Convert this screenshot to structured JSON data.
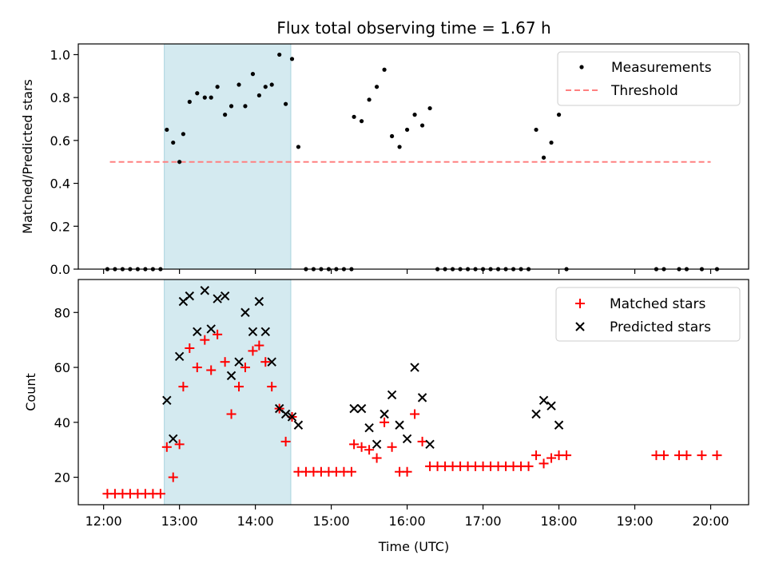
{
  "chart_data": [
    {
      "type": "scatter",
      "title": "Flux total observing time = 1.67 h",
      "ylabel": "Matched/Predicted stars",
      "xlabel": "",
      "xlim": [
        "11:40",
        "20:30"
      ],
      "ylim": [
        0,
        1.05
      ],
      "yticks": [
        0.0,
        0.2,
        0.4,
        0.6,
        0.8,
        1.0
      ],
      "ytick_labels": [
        "0.0",
        "0.2",
        "0.4",
        "0.6",
        "0.8",
        "1.0"
      ],
      "highlight_span": [
        "12:48",
        "14:28"
      ],
      "highlight_color": "#d4eaf0",
      "grid": false,
      "legend_position": "top-right",
      "threshold": {
        "name": "Threshold",
        "value": 0.5,
        "x_range": [
          "12:05",
          "20:00"
        ],
        "color": "#ff8080"
      },
      "series": [
        {
          "name": "Measurements",
          "color": "#000000",
          "marker": "dot",
          "points": [
            [
              "12:03",
              0
            ],
            [
              "12:09",
              0
            ],
            [
              "12:15",
              0
            ],
            [
              "12:21",
              0
            ],
            [
              "12:27",
              0
            ],
            [
              "12:33",
              0
            ],
            [
              "12:39",
              0
            ],
            [
              "12:45",
              0
            ],
            [
              "12:50",
              0.65
            ],
            [
              "12:55",
              0.59
            ],
            [
              "13:00",
              0.5
            ],
            [
              "13:03",
              0.63
            ],
            [
              "13:08",
              0.78
            ],
            [
              "13:14",
              0.82
            ],
            [
              "13:20",
              0.8
            ],
            [
              "13:25",
              0.8
            ],
            [
              "13:30",
              0.85
            ],
            [
              "13:36",
              0.72
            ],
            [
              "13:41",
              0.76
            ],
            [
              "13:47",
              0.86
            ],
            [
              "13:52",
              0.76
            ],
            [
              "13:58",
              0.91
            ],
            [
              "14:03",
              0.81
            ],
            [
              "14:08",
              0.85
            ],
            [
              "14:13",
              0.86
            ],
            [
              "14:19",
              1.0
            ],
            [
              "14:24",
              0.77
            ],
            [
              "14:29",
              0.98
            ],
            [
              "14:34",
              0.57
            ],
            [
              "14:40",
              0
            ],
            [
              "14:46",
              0
            ],
            [
              "14:52",
              0
            ],
            [
              "14:58",
              0
            ],
            [
              "15:04",
              0
            ],
            [
              "15:10",
              0
            ],
            [
              "15:16",
              0
            ],
            [
              "15:18",
              0.71
            ],
            [
              "15:24",
              0.69
            ],
            [
              "15:30",
              0.79
            ],
            [
              "15:36",
              0.85
            ],
            [
              "15:42",
              0.93
            ],
            [
              "15:48",
              0.62
            ],
            [
              "15:54",
              0.57
            ],
            [
              "16:00",
              0.65
            ],
            [
              "16:06",
              0.72
            ],
            [
              "16:12",
              0.67
            ],
            [
              "16:18",
              0.75
            ],
            [
              "16:24",
              0
            ],
            [
              "16:30",
              0
            ],
            [
              "16:36",
              0
            ],
            [
              "16:42",
              0
            ],
            [
              "16:48",
              0
            ],
            [
              "16:54",
              0
            ],
            [
              "17:00",
              0
            ],
            [
              "17:06",
              0
            ],
            [
              "17:12",
              0
            ],
            [
              "17:18",
              0
            ],
            [
              "17:24",
              0
            ],
            [
              "17:30",
              0
            ],
            [
              "17:36",
              0
            ],
            [
              "17:42",
              0.65
            ],
            [
              "17:48",
              0.52
            ],
            [
              "17:54",
              0.59
            ],
            [
              "18:00",
              0.72
            ],
            [
              "18:06",
              0
            ],
            [
              "19:17",
              0
            ],
            [
              "19:23",
              0
            ],
            [
              "19:35",
              0
            ],
            [
              "19:41",
              0
            ],
            [
              "19:53",
              0
            ],
            [
              "20:05",
              0
            ]
          ]
        }
      ]
    },
    {
      "type": "scatter",
      "title": "",
      "ylabel": "Count",
      "xlabel": "Time (UTC)",
      "xlim": [
        "11:40",
        "20:30"
      ],
      "ylim": [
        10,
        92
      ],
      "yticks": [
        20,
        40,
        60,
        80
      ],
      "ytick_labels": [
        "20",
        "40",
        "60",
        "80"
      ],
      "xticks": [
        "12:00",
        "13:00",
        "14:00",
        "15:00",
        "16:00",
        "17:00",
        "18:00",
        "19:00",
        "20:00"
      ],
      "xtick_labels": [
        "12:00",
        "13:00",
        "14:00",
        "15:00",
        "16:00",
        "17:00",
        "18:00",
        "19:00",
        "20:00"
      ],
      "highlight_span": [
        "12:48",
        "14:28"
      ],
      "highlight_color": "#d4eaf0",
      "grid": false,
      "legend_position": "top-right",
      "series": [
        {
          "name": "Matched stars",
          "color": "#ff0000",
          "marker": "plus",
          "points": [
            [
              "12:03",
              14
            ],
            [
              "12:09",
              14
            ],
            [
              "12:15",
              14
            ],
            [
              "12:21",
              14
            ],
            [
              "12:27",
              14
            ],
            [
              "12:33",
              14
            ],
            [
              "12:39",
              14
            ],
            [
              "12:45",
              14
            ],
            [
              "12:50",
              31
            ],
            [
              "12:55",
              20
            ],
            [
              "13:00",
              32
            ],
            [
              "13:03",
              53
            ],
            [
              "13:08",
              67
            ],
            [
              "13:14",
              60
            ],
            [
              "13:20",
              70
            ],
            [
              "13:25",
              59
            ],
            [
              "13:30",
              72
            ],
            [
              "13:36",
              62
            ],
            [
              "13:41",
              43
            ],
            [
              "13:47",
              53
            ],
            [
              "13:52",
              60
            ],
            [
              "13:58",
              66
            ],
            [
              "14:03",
              68
            ],
            [
              "14:08",
              62
            ],
            [
              "14:13",
              53
            ],
            [
              "14:19",
              45
            ],
            [
              "14:24",
              33
            ],
            [
              "14:29",
              42
            ],
            [
              "14:34",
              22
            ],
            [
              "14:40",
              22
            ],
            [
              "14:46",
              22
            ],
            [
              "14:52",
              22
            ],
            [
              "14:58",
              22
            ],
            [
              "15:04",
              22
            ],
            [
              "15:10",
              22
            ],
            [
              "15:16",
              22
            ],
            [
              "15:18",
              32
            ],
            [
              "15:24",
              31
            ],
            [
              "15:30",
              30
            ],
            [
              "15:36",
              27
            ],
            [
              "15:42",
              40
            ],
            [
              "15:48",
              31
            ],
            [
              "15:54",
              22
            ],
            [
              "16:00",
              22
            ],
            [
              "16:06",
              43
            ],
            [
              "16:12",
              33
            ],
            [
              "16:18",
              24
            ],
            [
              "16:24",
              24
            ],
            [
              "16:30",
              24
            ],
            [
              "16:36",
              24
            ],
            [
              "16:42",
              24
            ],
            [
              "16:48",
              24
            ],
            [
              "16:54",
              24
            ],
            [
              "17:00",
              24
            ],
            [
              "17:06",
              24
            ],
            [
              "17:12",
              24
            ],
            [
              "17:18",
              24
            ],
            [
              "17:24",
              24
            ],
            [
              "17:30",
              24
            ],
            [
              "17:36",
              24
            ],
            [
              "17:42",
              28
            ],
            [
              "17:48",
              25
            ],
            [
              "17:54",
              27
            ],
            [
              "18:00",
              28
            ],
            [
              "18:06",
              28
            ],
            [
              "19:17",
              28
            ],
            [
              "19:23",
              28
            ],
            [
              "19:35",
              28
            ],
            [
              "19:41",
              28
            ],
            [
              "19:53",
              28
            ],
            [
              "20:05",
              28
            ]
          ]
        },
        {
          "name": "Predicted stars",
          "color": "#000000",
          "marker": "x",
          "points": [
            [
              "12:50",
              48
            ],
            [
              "12:55",
              34
            ],
            [
              "13:00",
              64
            ],
            [
              "13:03",
              84
            ],
            [
              "13:08",
              86
            ],
            [
              "13:14",
              73
            ],
            [
              "13:20",
              88
            ],
            [
              "13:25",
              74
            ],
            [
              "13:30",
              85
            ],
            [
              "13:36",
              86
            ],
            [
              "13:41",
              57
            ],
            [
              "13:47",
              62
            ],
            [
              "13:52",
              80
            ],
            [
              "13:58",
              73
            ],
            [
              "14:03",
              84
            ],
            [
              "14:08",
              73
            ],
            [
              "14:13",
              62
            ],
            [
              "14:19",
              45
            ],
            [
              "14:24",
              43
            ],
            [
              "14:29",
              42
            ],
            [
              "14:34",
              39
            ],
            [
              "15:18",
              45
            ],
            [
              "15:24",
              45
            ],
            [
              "15:30",
              38
            ],
            [
              "15:36",
              32
            ],
            [
              "15:42",
              43
            ],
            [
              "15:48",
              50
            ],
            [
              "15:54",
              39
            ],
            [
              "16:00",
              34
            ],
            [
              "16:06",
              60
            ],
            [
              "16:12",
              49
            ],
            [
              "16:18",
              32
            ],
            [
              "17:42",
              43
            ],
            [
              "17:48",
              48
            ],
            [
              "17:54",
              46
            ],
            [
              "18:00",
              39
            ]
          ]
        }
      ]
    }
  ]
}
